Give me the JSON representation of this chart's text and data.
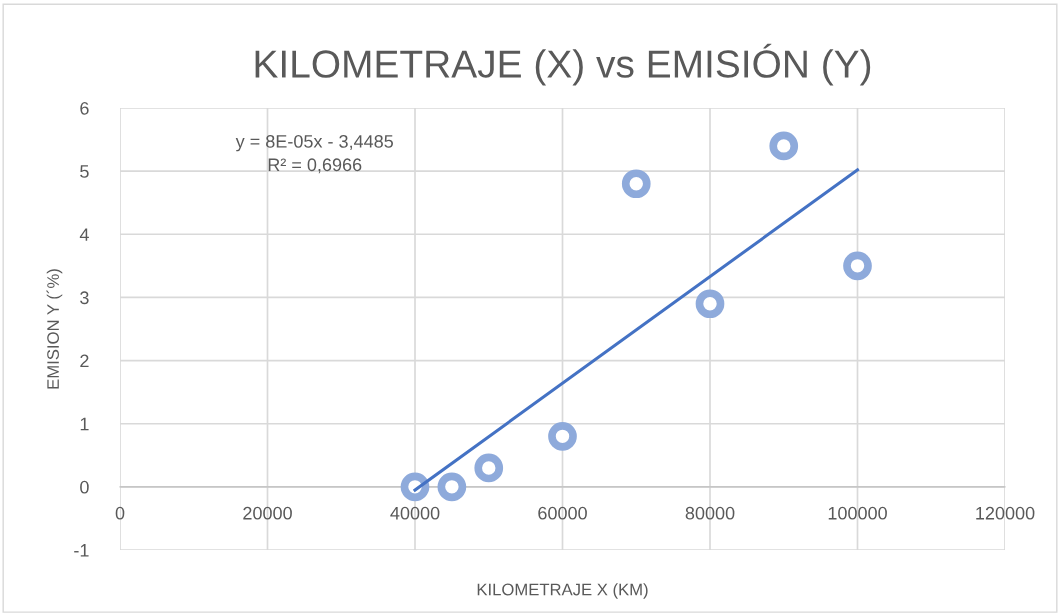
{
  "chart_data": {
    "type": "scatter",
    "title": "KILOMETRAJE (X) vs EMISIÓN (Y)",
    "xlabel": "KILOMETRAJE X (KM)",
    "ylabel": "EMISION Y (´%)",
    "annotations": [
      "y = 8E-05x - 3,4485\nR² = 0,6966"
    ],
    "series": [
      {
        "color": "#8eaadb",
        "marker": "circle",
        "x": [
          40000,
          45000,
          50000,
          60000,
          70000,
          80000,
          90000,
          100000
        ],
        "values": [
          0,
          0,
          0.3,
          0.8,
          4.8,
          2.9,
          5.4,
          3.5
        ]
      },
      {
        "type": "line",
        "color": "#4472c4",
        "line_style": "solid",
        "x": [
          40000,
          100000
        ],
        "values": [
          -0.05,
          5.02
        ]
      }
    ],
    "xlim": [
      0,
      120000
    ],
    "xticks": [
      0,
      20000,
      40000,
      60000,
      80000,
      100000,
      120000
    ],
    "ylim": [
      -1,
      6
    ],
    "yticks": [
      -1,
      0,
      1,
      2,
      3,
      4,
      5,
      6
    ],
    "grid": true,
    "legend": false
  }
}
